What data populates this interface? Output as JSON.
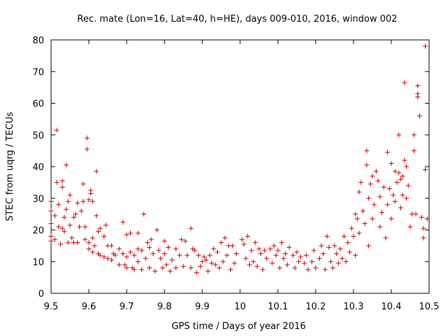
{
  "chart_data": {
    "type": "scatter",
    "title": "Rec. mate (Lon=16, Lat=40, h=HE), days 009-010, 2016, window 002",
    "xlabel": "GPS time / Days of year 2016",
    "ylabel": "STEC from uqrg / TECUs",
    "xlim": [
      9.5,
      10.5
    ],
    "ylim": [
      0,
      80
    ],
    "xticks": [
      9.5,
      9.6,
      9.7,
      9.8,
      9.9,
      10,
      10.1,
      10.2,
      10.3,
      10.4,
      10.5
    ],
    "xtick_labels": [
      "9.5",
      "9.6",
      "9.7",
      "9.8",
      "9.9",
      "10",
      "10.1",
      "10.2",
      "10.3",
      "10.4",
      "10.5"
    ],
    "yticks": [
      0,
      10,
      20,
      30,
      40,
      50,
      60,
      70,
      80
    ],
    "ytick_labels": [
      "0",
      "10",
      "20",
      "30",
      "40",
      "50",
      "60",
      "70",
      "80"
    ],
    "grid": false,
    "legend": "none",
    "marker": "plus",
    "color": "#cc0000",
    "series": [
      {
        "points": [
          [
            9.5,
            16.5
          ],
          [
            9.5,
            18
          ],
          [
            9.5,
            22
          ],
          [
            9.5,
            26
          ],
          [
            9.5,
            29
          ],
          [
            9.51,
            17
          ],
          [
            9.51,
            24.5
          ],
          [
            9.515,
            51.5
          ],
          [
            9.515,
            35
          ],
          [
            9.52,
            28
          ],
          [
            9.52,
            21
          ],
          [
            9.525,
            15.5
          ],
          [
            9.53,
            35.5
          ],
          [
            9.53,
            33.5
          ],
          [
            9.53,
            20.5
          ],
          [
            9.535,
            19.5
          ],
          [
            9.535,
            24
          ],
          [
            9.54,
            26.5
          ],
          [
            9.54,
            40.5
          ],
          [
            9.545,
            29
          ],
          [
            9.545,
            16
          ],
          [
            9.55,
            31
          ],
          [
            9.55,
            21.5
          ],
          [
            9.555,
            17.5
          ],
          [
            9.56,
            24
          ],
          [
            9.56,
            16
          ],
          [
            9.565,
            25
          ],
          [
            9.57,
            28.5
          ],
          [
            9.57,
            16
          ],
          [
            9.575,
            21
          ],
          [
            9.58,
            26
          ],
          [
            9.585,
            34.5
          ],
          [
            9.585,
            29
          ],
          [
            9.59,
            21
          ],
          [
            9.59,
            17
          ],
          [
            9.595,
            45.5
          ],
          [
            9.595,
            49
          ],
          [
            9.6,
            29.5
          ],
          [
            9.6,
            16
          ],
          [
            9.6,
            14
          ],
          [
            9.605,
            32.5
          ],
          [
            9.605,
            31.5
          ],
          [
            9.61,
            29
          ],
          [
            9.61,
            17.5
          ],
          [
            9.61,
            13
          ],
          [
            9.615,
            15
          ],
          [
            9.62,
            38.5
          ],
          [
            9.62,
            24.5
          ],
          [
            9.625,
            19.5
          ],
          [
            9.625,
            12.5
          ],
          [
            9.63,
            20.5
          ],
          [
            9.63,
            12
          ],
          [
            9.64,
            18
          ],
          [
            9.64,
            11.5
          ],
          [
            9.645,
            21.5
          ],
          [
            9.65,
            15
          ],
          [
            9.65,
            11
          ],
          [
            9.66,
            15
          ],
          [
            9.66,
            10.5
          ],
          [
            9.665,
            12.5
          ],
          [
            9.67,
            12
          ],
          [
            9.68,
            14
          ],
          [
            9.68,
            9
          ],
          [
            9.69,
            22.5
          ],
          [
            9.69,
            12.5
          ],
          [
            9.695,
            9
          ],
          [
            9.7,
            18.5
          ],
          [
            9.7,
            11.5
          ],
          [
            9.7,
            8
          ],
          [
            9.71,
            19
          ],
          [
            9.71,
            13
          ],
          [
            9.715,
            8
          ],
          [
            9.72,
            12
          ],
          [
            9.72,
            7.5
          ],
          [
            9.73,
            19
          ],
          [
            9.73,
            14
          ],
          [
            9.73,
            10
          ],
          [
            9.74,
            13.5
          ],
          [
            9.74,
            7.5
          ],
          [
            9.745,
            25
          ],
          [
            9.75,
            11
          ],
          [
            9.755,
            16
          ],
          [
            9.76,
            14.5
          ],
          [
            9.76,
            8
          ],
          [
            9.765,
            17
          ],
          [
            9.77,
            12.5
          ],
          [
            9.775,
            7
          ],
          [
            9.78,
            20
          ],
          [
            9.785,
            13.5
          ],
          [
            9.79,
            11
          ],
          [
            9.795,
            8
          ],
          [
            9.8,
            16.5
          ],
          [
            9.8,
            12.5
          ],
          [
            9.805,
            9
          ],
          [
            9.81,
            14.5
          ],
          [
            9.815,
            7
          ],
          [
            9.82,
            10.5
          ],
          [
            9.83,
            14
          ],
          [
            9.83,
            8
          ],
          [
            9.84,
            12
          ],
          [
            9.845,
            17
          ],
          [
            9.85,
            8.5
          ],
          [
            9.855,
            16.5
          ],
          [
            9.86,
            12
          ],
          [
            9.87,
            20.5
          ],
          [
            9.87,
            8
          ],
          [
            9.875,
            14
          ],
          [
            9.88,
            13.5
          ],
          [
            9.885,
            6.5
          ],
          [
            9.89,
            12
          ],
          [
            9.895,
            8.5
          ],
          [
            9.9,
            10
          ],
          [
            9.905,
            11.5
          ],
          [
            9.91,
            10.5
          ],
          [
            9.915,
            7
          ],
          [
            9.92,
            12
          ],
          [
            9.925,
            9.5
          ],
          [
            9.93,
            14
          ],
          [
            9.935,
            9
          ],
          [
            9.94,
            13
          ],
          [
            9.945,
            8
          ],
          [
            9.95,
            16
          ],
          [
            9.955,
            10
          ],
          [
            9.96,
            17.5
          ],
          [
            9.965,
            12
          ],
          [
            9.97,
            15
          ],
          [
            9.975,
            7.5
          ],
          [
            9.98,
            15
          ],
          [
            9.985,
            9.5
          ],
          [
            9.99,
            12.5
          ],
          [
            10.005,
            17
          ],
          [
            10.01,
            15.5
          ],
          [
            10.015,
            11
          ],
          [
            10.02,
            18
          ],
          [
            10.025,
            9
          ],
          [
            10.03,
            13.5
          ],
          [
            10.035,
            10
          ],
          [
            10.04,
            16
          ],
          [
            10.045,
            8.5
          ],
          [
            10.05,
            14
          ],
          [
            10.055,
            12.5
          ],
          [
            10.06,
            7.5
          ],
          [
            10.065,
            13.5
          ],
          [
            10.07,
            11
          ],
          [
            10.08,
            14
          ],
          [
            10.085,
            9.5
          ],
          [
            10.09,
            15
          ],
          [
            10.095,
            12
          ],
          [
            10.1,
            13.5
          ],
          [
            10.105,
            8
          ],
          [
            10.11,
            16
          ],
          [
            10.115,
            11
          ],
          [
            10.12,
            12.5
          ],
          [
            10.125,
            9
          ],
          [
            10.13,
            14.5
          ],
          [
            10.14,
            12
          ],
          [
            10.145,
            8
          ],
          [
            10.15,
            13
          ],
          [
            10.155,
            10
          ],
          [
            10.16,
            11.5
          ],
          [
            10.17,
            9.5
          ],
          [
            10.175,
            12
          ],
          [
            10.18,
            7.5
          ],
          [
            10.19,
            10
          ],
          [
            10.195,
            13.5
          ],
          [
            10.2,
            8
          ],
          [
            10.21,
            11
          ],
          [
            10.215,
            15
          ],
          [
            10.22,
            12.5
          ],
          [
            10.225,
            7.5
          ],
          [
            10.23,
            18
          ],
          [
            10.235,
            14.5
          ],
          [
            10.24,
            10
          ],
          [
            10.245,
            8
          ],
          [
            10.25,
            15
          ],
          [
            10.255,
            12.5
          ],
          [
            10.26,
            9.5
          ],
          [
            10.265,
            14
          ],
          [
            10.27,
            11
          ],
          [
            10.275,
            18
          ],
          [
            10.28,
            10
          ],
          [
            10.285,
            16
          ],
          [
            10.29,
            13
          ],
          [
            10.295,
            20.5
          ],
          [
            10.3,
            18
          ],
          [
            10.305,
            25
          ],
          [
            10.305,
            12
          ],
          [
            10.31,
            23.5
          ],
          [
            10.315,
            32
          ],
          [
            10.315,
            19
          ],
          [
            10.32,
            35
          ],
          [
            10.325,
            26
          ],
          [
            10.33,
            22
          ],
          [
            10.335,
            45
          ],
          [
            10.335,
            40.5
          ],
          [
            10.34,
            30
          ],
          [
            10.34,
            15
          ],
          [
            10.345,
            34.5
          ],
          [
            10.35,
            37
          ],
          [
            10.35,
            23.5
          ],
          [
            10.355,
            28
          ],
          [
            10.36,
            38.5
          ],
          [
            10.365,
            35.5
          ],
          [
            10.37,
            30.5
          ],
          [
            10.37,
            21
          ],
          [
            10.375,
            25.5
          ],
          [
            10.38,
            33.5
          ],
          [
            10.385,
            17.5
          ],
          [
            10.39,
            44.5
          ],
          [
            10.39,
            28
          ],
          [
            10.395,
            33
          ],
          [
            10.4,
            41
          ],
          [
            10.4,
            23.5
          ],
          [
            10.405,
            31
          ],
          [
            10.41,
            38.5
          ],
          [
            10.41,
            29
          ],
          [
            10.415,
            35
          ],
          [
            10.42,
            50
          ],
          [
            10.42,
            38
          ],
          [
            10.425,
            36
          ],
          [
            10.425,
            27
          ],
          [
            10.43,
            37
          ],
          [
            10.43,
            31
          ],
          [
            10.435,
            42
          ],
          [
            10.435,
            66.5
          ],
          [
            10.44,
            40
          ],
          [
            10.44,
            30
          ],
          [
            10.445,
            34
          ],
          [
            10.45,
            21
          ],
          [
            10.455,
            25
          ],
          [
            10.46,
            45
          ],
          [
            10.46,
            50
          ],
          [
            10.465,
            25
          ],
          [
            10.47,
            65.5
          ],
          [
            10.47,
            63
          ],
          [
            10.47,
            62
          ],
          [
            10.475,
            56
          ],
          [
            10.48,
            24
          ],
          [
            10.485,
            20.5
          ],
          [
            10.485,
            17.5
          ],
          [
            10.49,
            78
          ],
          [
            10.49,
            39
          ],
          [
            10.495,
            23.5
          ]
        ]
      }
    ]
  }
}
